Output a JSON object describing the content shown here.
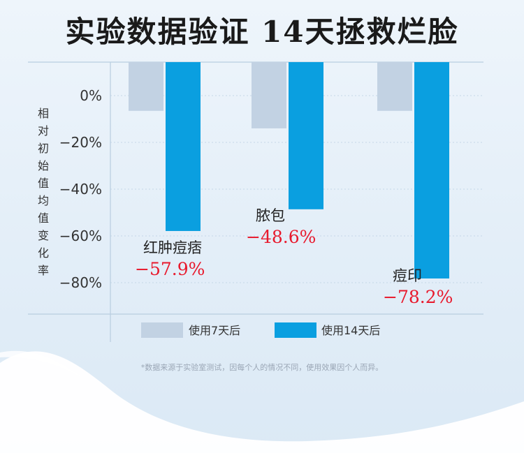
{
  "title": "实验数据验证  14天拯救烂脸",
  "footnote": "*数据来源于实验室测试，因每个人的情况不同，使用效果因个人而异。",
  "colors": {
    "series1": "#c2d2e3",
    "series2": "#0a9fe0",
    "value": "#e8192c",
    "grid": "#b8cde0"
  },
  "chart_data": {
    "type": "bar",
    "title": "实验数据验证  14天拯救烂脸",
    "ylabel": "相对初始值均值变化率",
    "xlabel": "",
    "ylim": [
      -90,
      8
    ],
    "yticks": [
      0,
      -20,
      -40,
      -60,
      -80
    ],
    "ytick_labels": [
      "0%",
      "−20%",
      "−40%",
      "−60%",
      "−80%"
    ],
    "grid": true,
    "legend": "bottom",
    "categories": [
      "红肿痘痞",
      "脓包",
      "痘印"
    ],
    "series": [
      {
        "name": "使用7天后",
        "values": [
          -6.5,
          -14,
          -6.5
        ]
      },
      {
        "name": "使用14天后",
        "values": [
          -57.9,
          -48.6,
          -78.2
        ]
      }
    ],
    "value_labels": [
      "−57.9%",
      "−48.6%",
      "−78.2%"
    ]
  }
}
